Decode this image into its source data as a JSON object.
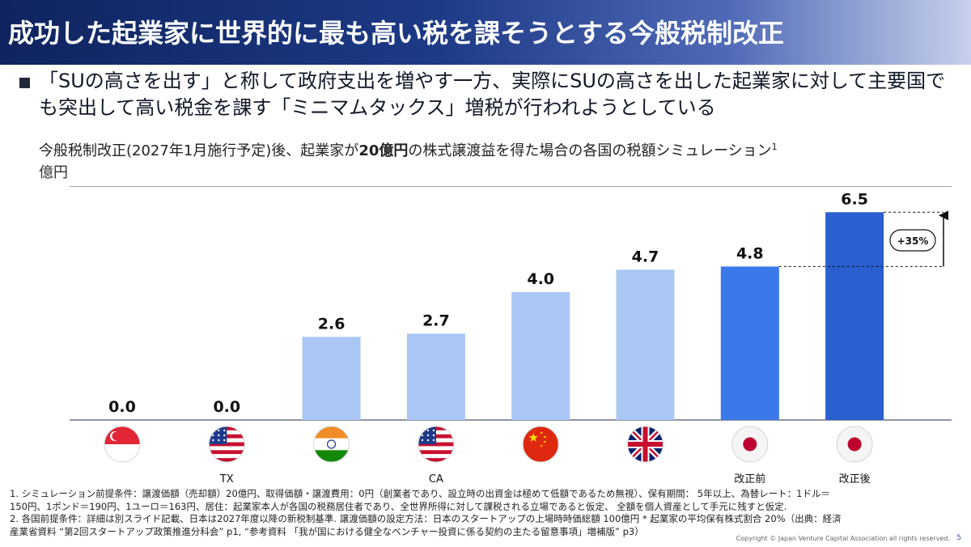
{
  "header": {
    "title": "成功した起業家に世界的に最も高い税を課そうとする今般税制改正"
  },
  "lead": {
    "text": "「SUの高さを出す」と称して政府支出を増やす一方、実際にSUの高さを出した起業家に対して主要国でも突出して高い税金を課す「ミニマムタックス」増税が行われようとしている"
  },
  "subtitle": {
    "part1": "今般税制改正(2027年1月施行予定)後、起業家が",
    "bold": "20億円",
    "part2": "の株式譲渡益を得た場合の各国の税額シミュレーション",
    "sup": "1"
  },
  "chart_data": {
    "type": "bar",
    "unit_label": "億円",
    "categories": [
      "シンガポール",
      "TX",
      "インド",
      "CA",
      "中国",
      "英国",
      "改正前",
      "改正後"
    ],
    "category_labels": [
      "",
      "TX",
      "",
      "CA",
      "",
      "",
      "改正前",
      "改正後"
    ],
    "values": [
      0.0,
      0.0,
      2.6,
      2.7,
      4.0,
      4.7,
      4.8,
      6.5
    ],
    "value_labels": [
      "0.0",
      "0.0",
      "2.6",
      "2.7",
      "4.0",
      "4.7",
      "4.8",
      "6.5"
    ],
    "flags": [
      "sg",
      "us",
      "in",
      "us",
      "cn",
      "uk",
      "jp",
      "jp"
    ],
    "bar_colors": [
      "#a9c6f5",
      "#a9c6f5",
      "#a9c6f5",
      "#a9c6f5",
      "#a9c6f5",
      "#a9c6f5",
      "#3b78ea",
      "#2a5fcf"
    ],
    "annotation": "+35%",
    "ylim": [
      0,
      7
    ]
  },
  "notes": {
    "line1": "1. シミュレーション前提条件：譲渡価額（売却額）20億円、取得価額・譲渡費用：0円（創業者であり、設立時の出資金は極めて低額であるため無視）、保有期間： 5年以上、為替レート：1ドル＝",
    "line2": "150円、1ポンド＝190円、1ユーロ＝163円、居住：起業家本人が各国の税務居住者であり、全世界所得に対して課税される立場であると仮定、 全額を個人資産として手元に残すと仮定.",
    "line3": "2. 各国前提条件：詳細は別スライド記載、日本は2027年度以降の新税制基準.   譲渡価額の設定方法：日本のスタートアップの上場時時価総額 100億円 * 起業家の平均保有株式割合 20%（出典：経済",
    "line4": "産業省資料 “第2回スタートアップ政策推進分科会” p1, “参考資料 「我が国における健全なベンチャー投資に係る契約の主たる留意事項」増補版” p3）"
  },
  "footer": {
    "copyright": "Copyright © Japan Venture Capital Association all rights reserved.",
    "page": "5"
  }
}
